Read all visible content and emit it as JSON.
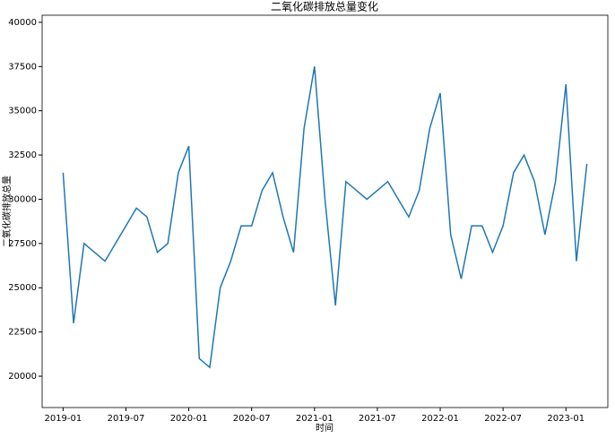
{
  "chart_data": {
    "type": "line",
    "title": "二氧化碳排放总量变化",
    "x_label": "时间",
    "y_label": "二氧化碳排放总量",
    "x": [
      "2019-01",
      "2019-02",
      "2019-03",
      "2019-04",
      "2019-05",
      "2019-06",
      "2019-07",
      "2019-08",
      "2019-09",
      "2019-10",
      "2019-11",
      "2019-12",
      "2020-01",
      "2020-02",
      "2020-03",
      "2020-04",
      "2020-05",
      "2020-06",
      "2020-07",
      "2020-08",
      "2020-09",
      "2020-10",
      "2020-11",
      "2020-12",
      "2021-01",
      "2021-02",
      "2021-03",
      "2021-04",
      "2021-05",
      "2021-06",
      "2021-07",
      "2021-08",
      "2021-09",
      "2021-10",
      "2021-11",
      "2021-12",
      "2022-01",
      "2022-02",
      "2022-03",
      "2022-04",
      "2022-05",
      "2022-06",
      "2022-07",
      "2022-08",
      "2022-09",
      "2022-10",
      "2022-11",
      "2022-12",
      "2023-01",
      "2023-02",
      "2023-03"
    ],
    "series": [
      {
        "color": "#1f77b4",
        "values": [
          31500,
          23000,
          27500,
          27000,
          26500,
          27500,
          28500,
          29500,
          29000,
          27000,
          27500,
          31500,
          33000,
          21000,
          20500,
          25000,
          26500,
          28500,
          28500,
          30500,
          31500,
          29000,
          27000,
          34000,
          37500,
          30000,
          24000,
          31000,
          30500,
          30000,
          30500,
          31000,
          30000,
          29000,
          30500,
          34000,
          36000,
          28000,
          25500,
          28500,
          28500,
          27000,
          28500,
          31500,
          32500,
          31000,
          28000,
          31000,
          36500,
          26500,
          32000
        ]
      }
    ],
    "xlim": [
      "2018-11",
      "2023-05"
    ],
    "xticks": [
      "2019-01",
      "2019-07",
      "2020-01",
      "2020-07",
      "2021-01",
      "2021-07",
      "2022-01",
      "2022-07",
      "2023-01"
    ],
    "ylim": [
      18230,
      40400
    ],
    "yticks": [
      20000,
      22500,
      25000,
      27500,
      30000,
      32500,
      35000,
      37500,
      40000
    ]
  }
}
